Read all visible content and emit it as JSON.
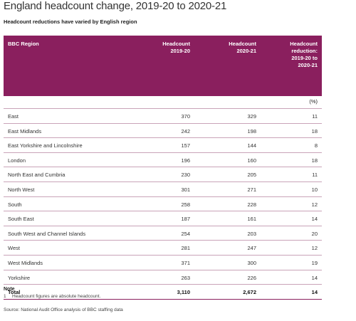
{
  "title": "England headcount change, 2019-20 to 2020-21",
  "subtitle": "Headcount reductions have varied by English region",
  "table": {
    "headers": {
      "region": "BBC Region",
      "h1920_line1": "Headcount",
      "h1920_line2": "2019-20",
      "h2021_line1": "Headcount",
      "h2021_line2": "2020-21",
      "red_line1": "Headcount",
      "red_line2": "reduction:",
      "red_line3": "2019-20 to",
      "red_line4": "2020-21"
    },
    "unit": "(%)",
    "rows": [
      {
        "region": "East",
        "h1920": "370",
        "h2021": "329",
        "reduction": "11"
      },
      {
        "region": "East Midlands",
        "h1920": "242",
        "h2021": "198",
        "reduction": "18"
      },
      {
        "region": "East Yorkshire and Lincolnshire",
        "h1920": "157",
        "h2021": "144",
        "reduction": "8"
      },
      {
        "region": "London",
        "h1920": "196",
        "h2021": "160",
        "reduction": "18"
      },
      {
        "region": "North East and Cumbria",
        "h1920": "230",
        "h2021": "205",
        "reduction": "11"
      },
      {
        "region": "North West",
        "h1920": "301",
        "h2021": "271",
        "reduction": "10"
      },
      {
        "region": "South",
        "h1920": "258",
        "h2021": "228",
        "reduction": "12"
      },
      {
        "region": "South East",
        "h1920": "187",
        "h2021": "161",
        "reduction": "14"
      },
      {
        "region": "South West and Channel Islands",
        "h1920": "254",
        "h2021": "203",
        "reduction": "20"
      },
      {
        "region": "West",
        "h1920": "281",
        "h2021": "247",
        "reduction": "12"
      },
      {
        "region": "West Midlands",
        "h1920": "371",
        "h2021": "300",
        "reduction": "19"
      },
      {
        "region": "Yorkshire",
        "h1920": "263",
        "h2021": "226",
        "reduction": "14"
      }
    ],
    "total": {
      "region": "Total",
      "h1920": "3,110",
      "h2021": "2,672",
      "reduction": "14"
    }
  },
  "notes": {
    "heading": "Note",
    "items": [
      {
        "num": "1",
        "text": "Headcount figures are absolute headcount."
      }
    ]
  },
  "source": "Source: National Audit Office analysis of BBC staffing data",
  "colors": {
    "header_bg": "#8a1f5e",
    "rule": "#c9a3b8"
  }
}
